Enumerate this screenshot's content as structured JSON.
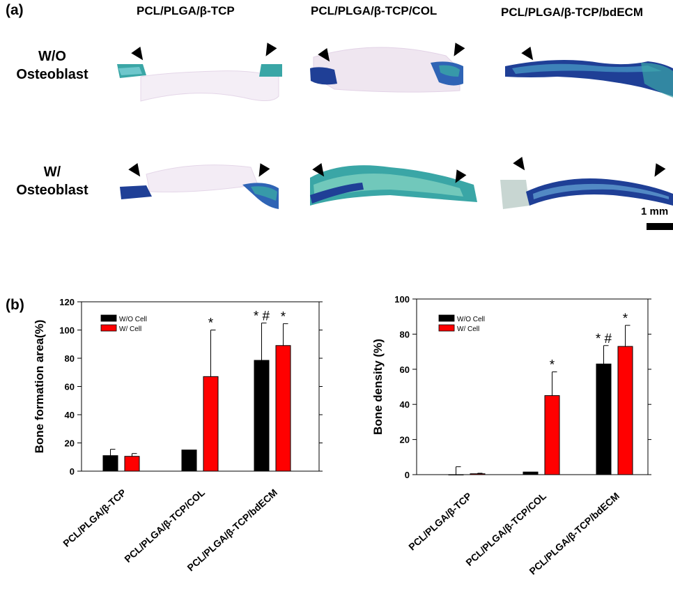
{
  "panel_a": {
    "label": "(a)",
    "columns": [
      "PCL/PLGA/β-TCP",
      "PCL/PLGA/β-TCP/COL",
      "PCL/PLGA/β-TCP/bdECM"
    ],
    "rows": [
      {
        "line1": "W/O",
        "line2": "Osteoblast"
      },
      {
        "line1": "W/",
        "line2": "Osteoblast"
      }
    ],
    "scale_bar": "1 mm",
    "colors": {
      "stain_dark": "#1f3f96",
      "stain_teal": "#3aa6a6",
      "tissue_pink": "#e8d9ea"
    }
  },
  "panel_b": {
    "label": "(b)"
  },
  "chart_data": [
    {
      "type": "bar",
      "ylabel": "Bone formation area(%)",
      "ylim": [
        0,
        120
      ],
      "yticks": [
        0,
        20,
        40,
        60,
        80,
        100,
        120
      ],
      "categories": [
        "PCL/PLGA/β-TCP",
        "PCL/PLGA/β-TCP/COL",
        "PCL/PLGA/β-TCP/bdECM"
      ],
      "series": [
        {
          "name": "W/O Cell",
          "color": "#000000",
          "values": [
            11,
            15,
            78.5
          ],
          "errors": [
            4.5,
            0,
            26.5
          ],
          "marks": [
            "",
            "",
            "* #"
          ]
        },
        {
          "name": "W/ Cell",
          "color": "#ff0000",
          "values": [
            10.5,
            67,
            89
          ],
          "errors": [
            2,
            33,
            15.5
          ],
          "marks": [
            "",
            "*",
            "*"
          ]
        }
      ],
      "legend_position": "top-left",
      "grid": false
    },
    {
      "type": "bar",
      "ylabel": "Bone density (%)",
      "ylim": [
        0,
        100
      ],
      "yticks": [
        0,
        20,
        40,
        60,
        80,
        100
      ],
      "categories": [
        "PCL/PLGA/β-TCP",
        "PCL/PLGA/β-TCP/COL",
        "PCL/PLGA/β-TCP/bdECM"
      ],
      "series": [
        {
          "name": "W/O Cell",
          "color": "#000000",
          "values": [
            0,
            1.5,
            63
          ],
          "errors": [
            4.5,
            0,
            10.5
          ],
          "marks": [
            "",
            "",
            "* #"
          ]
        },
        {
          "name": "W/ Cell",
          "color": "#ff0000",
          "values": [
            0.5,
            45,
            73
          ],
          "errors": [
            0.3,
            13.5,
            12
          ],
          "marks": [
            "",
            "*",
            "*"
          ]
        }
      ],
      "legend_position": "top-left",
      "grid": false
    }
  ]
}
